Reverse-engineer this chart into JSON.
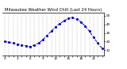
{
  "title": "Milwaukee Weather Wind Chill (Last 24 Hours)",
  "x_values": [
    0,
    1,
    2,
    3,
    4,
    5,
    6,
    7,
    8,
    9,
    10,
    11,
    12,
    13,
    14,
    15,
    16,
    17,
    18,
    19,
    20,
    21,
    22,
    23
  ],
  "y_values": [
    20,
    19,
    18,
    17,
    16,
    15,
    14,
    16,
    18,
    22,
    27,
    32,
    37,
    41,
    44,
    47,
    48,
    46,
    43,
    38,
    32,
    25,
    18,
    12
  ],
  "y_min": 4,
  "y_max": 54,
  "line_color": "#0000cc",
  "marker_size": 1.2,
  "bg_color": "#ffffff",
  "grid_color": "#aaaaaa",
  "title_fontsize": 3.8,
  "tick_fontsize": 3.0,
  "line_width": 0.7,
  "yticks": [
    10,
    20,
    30,
    40,
    50
  ]
}
